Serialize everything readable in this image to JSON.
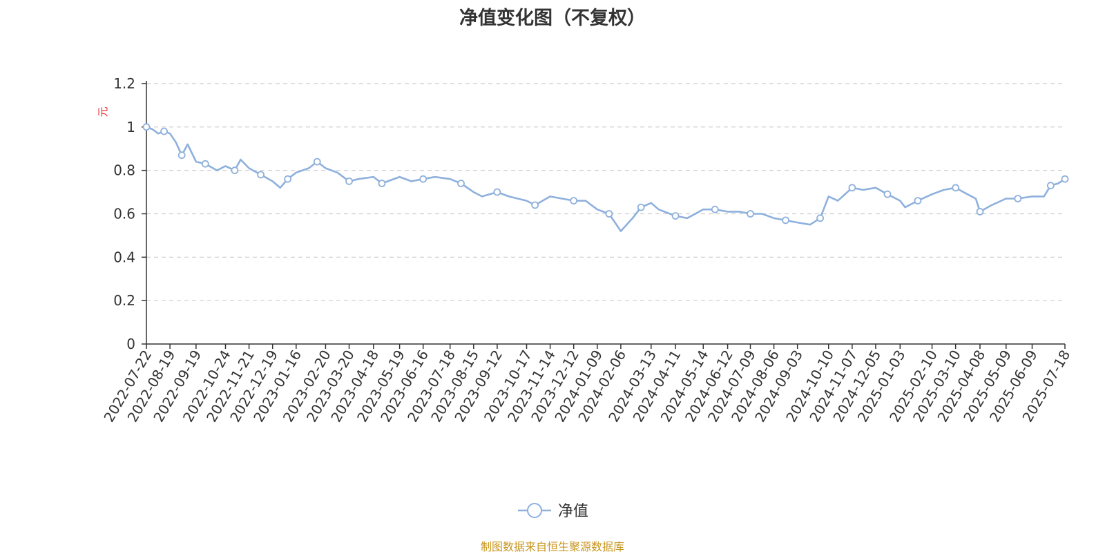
{
  "chart_data": {
    "type": "line",
    "title": "净值变化图（不复权）",
    "ylabel": "元",
    "ylim": [
      0,
      1.2
    ],
    "yticks": [
      "0",
      "0.2",
      "0.4",
      "0.6",
      "0.8",
      "1",
      "1.2"
    ],
    "xticks": [
      "2022-07-22",
      "2022-08-19",
      "2022-09-19",
      "2022-10-24",
      "2022-11-21",
      "2022-12-19",
      "2023-01-16",
      "2023-02-20",
      "2023-03-20",
      "2023-04-18",
      "2023-05-19",
      "2023-06-16",
      "2023-07-18",
      "2023-08-15",
      "2023-09-12",
      "2023-10-17",
      "2023-11-14",
      "2023-12-12",
      "2024-01-09",
      "2024-02-06",
      "2024-03-13",
      "2024-04-11",
      "2024-05-14",
      "2024-06-12",
      "2024-07-09",
      "2024-08-06",
      "2024-09-03",
      "2024-10-10",
      "2024-11-07",
      "2024-12-05",
      "2025-01-03",
      "2025-02-10",
      "2025-03-10",
      "2025-04-08",
      "2025-05-09",
      "2025-06-09",
      "2025-07-18"
    ],
    "grid": true,
    "legend_position": "bottom-center",
    "series": [
      {
        "name": "净值",
        "color": "#8eb0dc",
        "values": [
          [
            "2022-07-22",
            1.0
          ],
          [
            "2022-07-29",
            0.99
          ],
          [
            "2022-08-05",
            0.97
          ],
          [
            "2022-08-12",
            0.98
          ],
          [
            "2022-08-19",
            0.97
          ],
          [
            "2022-08-26",
            0.93
          ],
          [
            "2022-09-02",
            0.87
          ],
          [
            "2022-09-09",
            0.92
          ],
          [
            "2022-09-19",
            0.84
          ],
          [
            "2022-09-30",
            0.83
          ],
          [
            "2022-10-14",
            0.8
          ],
          [
            "2022-10-24",
            0.82
          ],
          [
            "2022-11-04",
            0.8
          ],
          [
            "2022-11-11",
            0.85
          ],
          [
            "2022-11-21",
            0.81
          ],
          [
            "2022-12-05",
            0.78
          ],
          [
            "2022-12-19",
            0.75
          ],
          [
            "2022-12-28",
            0.72
          ],
          [
            "2023-01-06",
            0.76
          ],
          [
            "2023-01-16",
            0.79
          ],
          [
            "2023-01-31",
            0.81
          ],
          [
            "2023-02-10",
            0.84
          ],
          [
            "2023-02-20",
            0.81
          ],
          [
            "2023-03-06",
            0.79
          ],
          [
            "2023-03-20",
            0.75
          ],
          [
            "2023-03-31",
            0.76
          ],
          [
            "2023-04-18",
            0.77
          ],
          [
            "2023-04-28",
            0.74
          ],
          [
            "2023-05-19",
            0.77
          ],
          [
            "2023-06-02",
            0.75
          ],
          [
            "2023-06-16",
            0.76
          ],
          [
            "2023-06-30",
            0.77
          ],
          [
            "2023-07-18",
            0.76
          ],
          [
            "2023-07-31",
            0.74
          ],
          [
            "2023-08-15",
            0.7
          ],
          [
            "2023-08-25",
            0.68
          ],
          [
            "2023-09-12",
            0.7
          ],
          [
            "2023-09-26",
            0.68
          ],
          [
            "2023-10-17",
            0.66
          ],
          [
            "2023-10-27",
            0.64
          ],
          [
            "2023-11-14",
            0.68
          ],
          [
            "2023-11-28",
            0.67
          ],
          [
            "2023-12-12",
            0.66
          ],
          [
            "2023-12-26",
            0.66
          ],
          [
            "2024-01-09",
            0.62
          ],
          [
            "2024-01-23",
            0.6
          ],
          [
            "2024-02-06",
            0.52
          ],
          [
            "2024-02-20",
            0.58
          ],
          [
            "2024-03-01",
            0.63
          ],
          [
            "2024-03-13",
            0.65
          ],
          [
            "2024-03-22",
            0.62
          ],
          [
            "2024-04-11",
            0.59
          ],
          [
            "2024-04-25",
            0.58
          ],
          [
            "2024-05-14",
            0.62
          ],
          [
            "2024-05-28",
            0.62
          ],
          [
            "2024-06-12",
            0.61
          ],
          [
            "2024-06-26",
            0.61
          ],
          [
            "2024-07-09",
            0.6
          ],
          [
            "2024-07-23",
            0.6
          ],
          [
            "2024-08-06",
            0.58
          ],
          [
            "2024-08-20",
            0.57
          ],
          [
            "2024-09-03",
            0.56
          ],
          [
            "2024-09-18",
            0.55
          ],
          [
            "2024-09-30",
            0.58
          ],
          [
            "2024-10-10",
            0.68
          ],
          [
            "2024-10-21",
            0.66
          ],
          [
            "2024-11-07",
            0.72
          ],
          [
            "2024-11-20",
            0.71
          ],
          [
            "2024-12-05",
            0.72
          ],
          [
            "2024-12-19",
            0.69
          ],
          [
            "2025-01-03",
            0.66
          ],
          [
            "2025-01-09",
            0.63
          ],
          [
            "2025-01-24",
            0.66
          ],
          [
            "2025-02-10",
            0.69
          ],
          [
            "2025-02-24",
            0.71
          ],
          [
            "2025-03-10",
            0.72
          ],
          [
            "2025-03-24",
            0.69
          ],
          [
            "2025-04-03",
            0.67
          ],
          [
            "2025-04-08",
            0.61
          ],
          [
            "2025-04-22",
            0.64
          ],
          [
            "2025-05-09",
            0.67
          ],
          [
            "2025-05-23",
            0.67
          ],
          [
            "2025-06-09",
            0.68
          ],
          [
            "2025-06-23",
            0.68
          ],
          [
            "2025-07-01",
            0.73
          ],
          [
            "2025-07-10",
            0.74
          ],
          [
            "2025-07-18",
            0.76
          ]
        ]
      }
    ]
  },
  "legend": {
    "label": "净值"
  },
  "source_note": "制图数据来自恒生聚源数据库",
  "colors": {
    "line": "#8eb0dc",
    "ylabel": "#e0262b",
    "source": "#c8961e"
  }
}
